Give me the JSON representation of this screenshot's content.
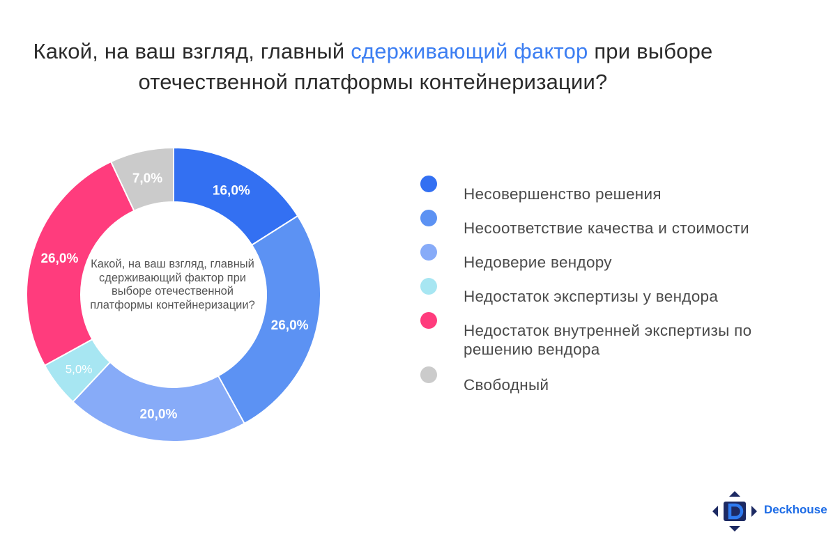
{
  "title": {
    "part1": "Какой, на ваш взгляд, главный ",
    "highlight": "сдерживающий фактор",
    "part2": " при выборе",
    "line2": "отечественной платформы контейнеризации?"
  },
  "center_text": "Какой, на ваш взгляд, главный сдерживающий фактор при выборе отечественной платформы контейнеризации?",
  "logo": {
    "text": "Deckhouse",
    "icon": "deckhouse-logo-icon"
  },
  "chart_data": {
    "type": "pie",
    "donut": true,
    "legend_position": "right",
    "series": [
      {
        "name": "Несовершенство  решения",
        "value": 16.0,
        "label": "16,0%",
        "color": "#3370f2"
      },
      {
        "name": "Несоответствие  качества  и стоимости",
        "value": 26.0,
        "label": "26,0%",
        "color": "#5c92f3"
      },
      {
        "name": "Недоверие вендору",
        "value": 20.0,
        "label": "20,0%",
        "color": "#87abf8"
      },
      {
        "name": "Недостаток  экспертизы у вендора",
        "value": 5.0,
        "label": "5,0%",
        "color": "#a7e6f2"
      },
      {
        "name": "Недостаток  внутренней экспертизы по решению  вендора",
        "value": 26.0,
        "label": "26,0%",
        "color": "#ff3c7d"
      },
      {
        "name": "Свободный",
        "value": 7.0,
        "label": "7,0%",
        "color": "#cbcbcb"
      }
    ]
  }
}
